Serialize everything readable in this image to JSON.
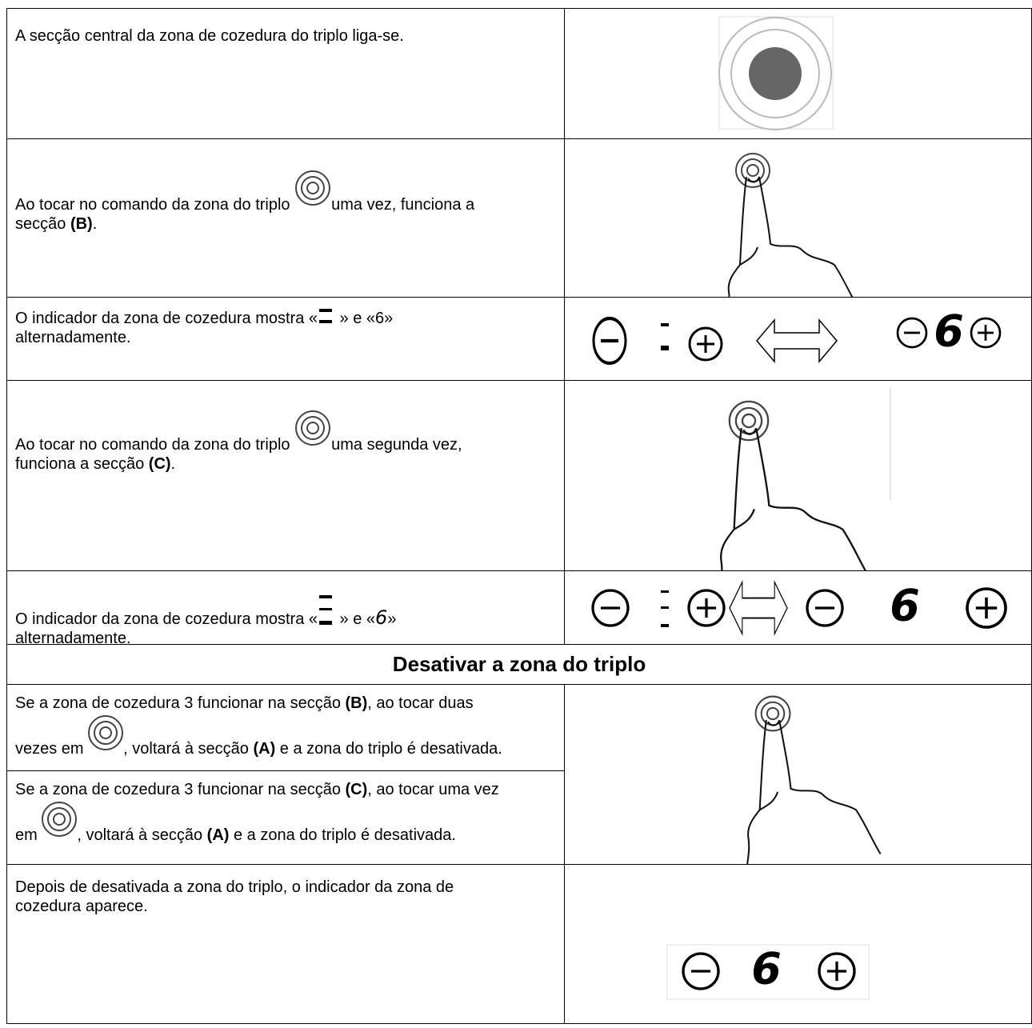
{
  "rows": [
    {
      "text": "A secção central da zona de cozedura do triplo liga-se."
    },
    {
      "before": "Ao tocar no comando da zona do triplo ",
      "after": "uma vez, funciona a secção ",
      "bold": "(B)",
      "end": "."
    },
    {
      "before": "O indicador da zona de cozedura mostra «",
      "after": " » e «6» alternadamente."
    },
    {
      "before": "Ao tocar no comando da zona do triplo ",
      "after": "uma segunda vez, funciona a secção ",
      "bold": "(C)",
      "end": "."
    },
    {
      "before": "O indicador da zona de cozedura mostra «",
      "middle": " » e «",
      "glyph": "6",
      "after": "» alternadamente."
    }
  ],
  "section_heading": "Desativar a zona do triplo",
  "off_rows": [
    {
      "a": "Se a zona de cozedura 3 funcionar na secção ",
      "b": "(B)",
      "c": ", ao tocar duas vezes em ",
      "d": ", voltará à secção ",
      "e": "(A)",
      "f": " e a zona do triplo é desativada."
    },
    {
      "a": "Se a zona de cozedura 3 funcionar na secção ",
      "b": "(C)",
      "c": ", ao tocar uma vez em ",
      "d": ", voltará à secção ",
      "e": "(A)",
      "f": " e a zona do triplo é desativada."
    },
    {
      "text": "Depois de desativada a zona do triplo, o indicador da zona de cozedura aparece."
    }
  ],
  "display_digit": "6"
}
